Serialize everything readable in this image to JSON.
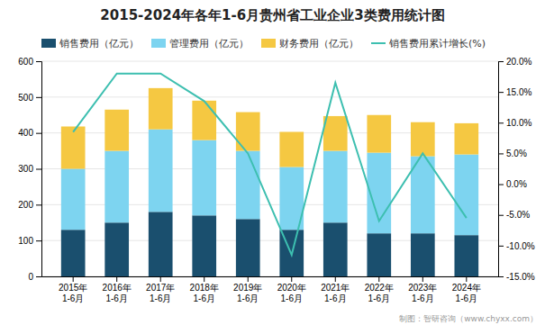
{
  "chart_data": {
    "type": "bar",
    "title": "2015-2024年各年1-6月贵州省工业企业3类费用统计图",
    "categories": [
      "2015年\n1-6月",
      "2016年\n1-6月",
      "2017年\n1-6月",
      "2018年\n1-6月",
      "2019年\n1-6月",
      "2020年\n1-6月",
      "2021年\n1-6月",
      "2022年\n1-6月",
      "2023年\n1-6月",
      "2024年\n1-6月"
    ],
    "series": [
      {
        "name": "销售费用（亿元）",
        "color": "#1a4f6e",
        "values": [
          130,
          150,
          180,
          170,
          160,
          130,
          150,
          120,
          120,
          115
        ]
      },
      {
        "name": "管理费用（亿元）",
        "color": "#7dd4f0",
        "values": [
          170,
          200,
          230,
          210,
          190,
          175,
          200,
          225,
          215,
          225
        ]
      },
      {
        "name": "财务费用（亿元）",
        "color": "#f5c842",
        "values": [
          118,
          115,
          115,
          110,
          108,
          98,
          97,
          105,
          95,
          87
        ]
      },
      {
        "name": "销售费用累计增长(%)",
        "type": "line",
        "axis": "y2",
        "color": "#3dbfb0",
        "values": [
          8.5,
          18.0,
          18.0,
          13.5,
          5.0,
          -11.5,
          16.5,
          -6.0,
          5.0,
          -5.5
        ]
      }
    ],
    "stacked": true,
    "ylim": [
      0,
      600
    ],
    "yticks": [
      0,
      100,
      200,
      300,
      400,
      500,
      600
    ],
    "y2lim": [
      -15,
      20
    ],
    "y2ticks": [
      {
        "value": -15.0,
        "label": "-15.0%"
      },
      {
        "value": -10.0,
        "label": "-10.0%"
      },
      {
        "value": -5.0,
        "label": "-5.0%"
      },
      {
        "value": 0.0,
        "label": "0.0%"
      },
      {
        "value": 5.0,
        "label": "5.0%"
      },
      {
        "value": 10.0,
        "label": "10.0%"
      },
      {
        "value": 15.0,
        "label": "15.0%"
      },
      {
        "value": 20.0,
        "label": "20.0%"
      }
    ],
    "grid": true,
    "legend": "top",
    "footer": "制图：智研咨询（www.chyxx.com）"
  }
}
